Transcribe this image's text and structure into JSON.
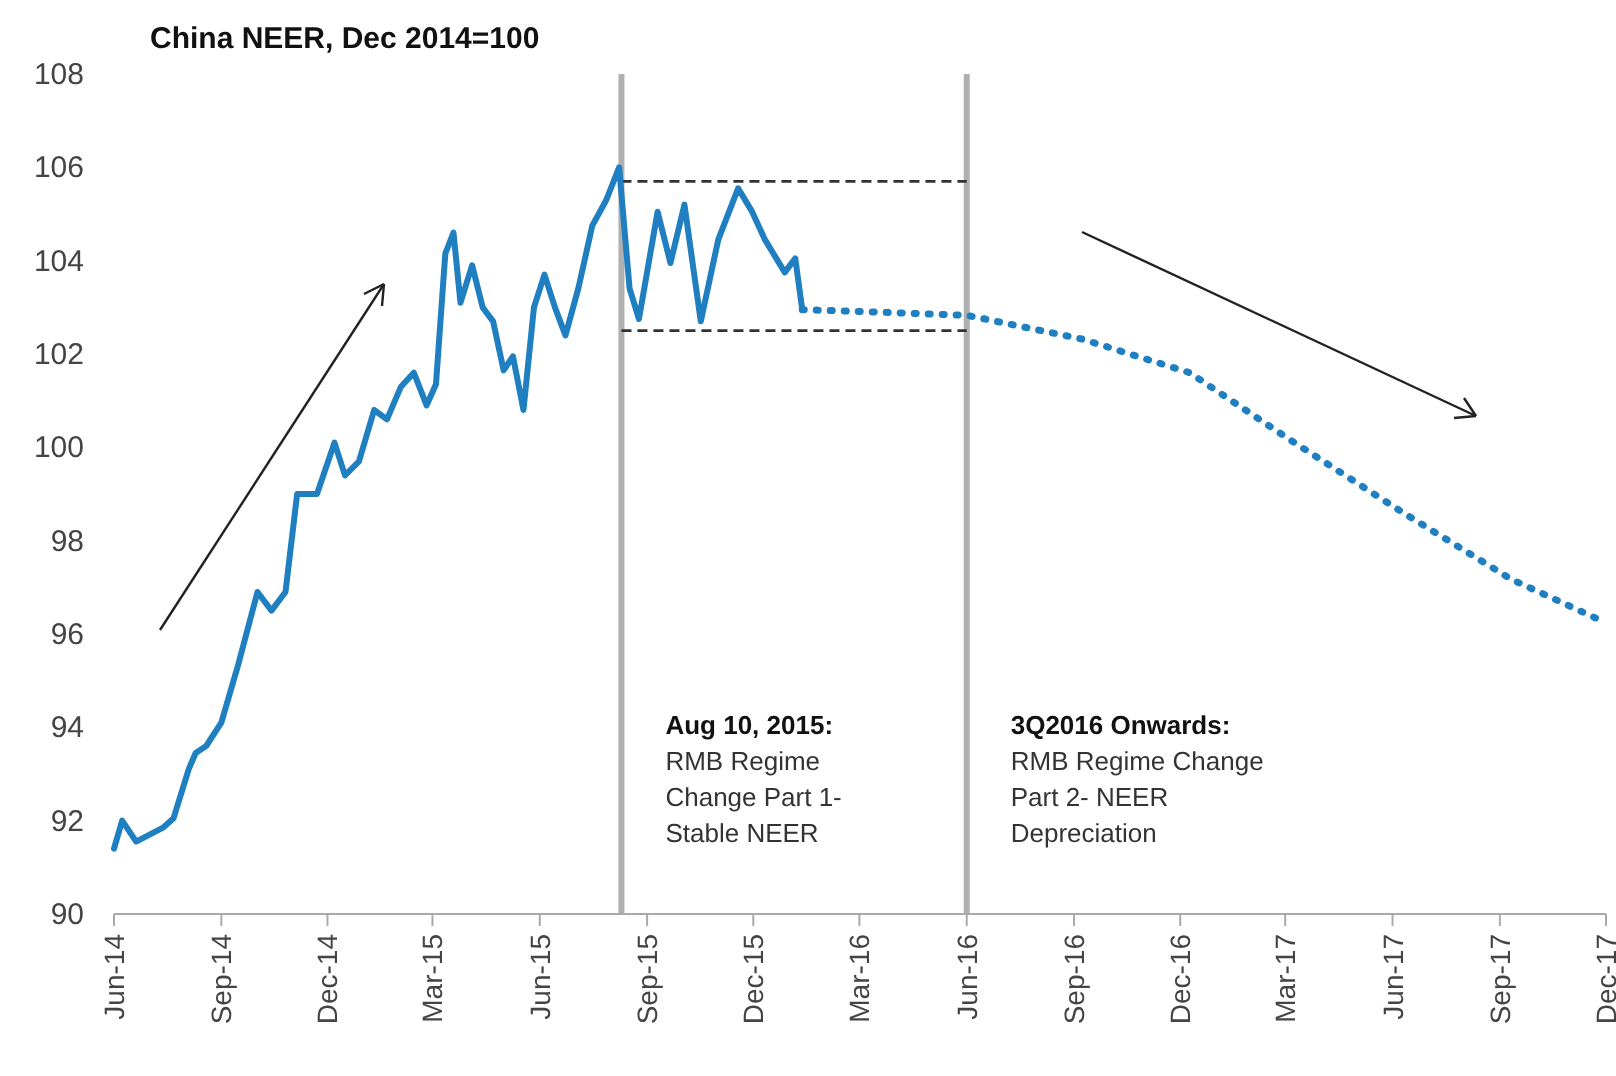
{
  "chart_data": {
    "type": "line",
    "title": "China NEER, Dec 2014=100",
    "xlim": [
      "2014-06-01",
      "2017-12-01"
    ],
    "xticks": [
      {
        "value": "2014-06-01",
        "label": "Jun-14"
      },
      {
        "value": "2014-09-01",
        "label": "Sep-14"
      },
      {
        "value": "2014-12-01",
        "label": "Dec-14"
      },
      {
        "value": "2015-03-01",
        "label": "Mar-15"
      },
      {
        "value": "2015-06-01",
        "label": "Jun-15"
      },
      {
        "value": "2015-09-01",
        "label": "Sep-15"
      },
      {
        "value": "2015-12-01",
        "label": "Dec-15"
      },
      {
        "value": "2016-03-01",
        "label": "Mar-16"
      },
      {
        "value": "2016-06-01",
        "label": "Jun-16"
      },
      {
        "value": "2016-09-01",
        "label": "Sep-16"
      },
      {
        "value": "2016-12-01",
        "label": "Dec-16"
      },
      {
        "value": "2017-03-01",
        "label": "Mar-17"
      },
      {
        "value": "2017-06-01",
        "label": "Jun-17"
      },
      {
        "value": "2017-09-01",
        "label": "Sep-17"
      },
      {
        "value": "2017-12-01",
        "label": "Dec-17"
      }
    ],
    "ylim": [
      90,
      108
    ],
    "yticks": [
      90,
      92,
      94,
      96,
      98,
      100,
      102,
      104,
      106,
      108
    ],
    "grid": false,
    "series": [
      {
        "color": "#1f7fc0",
        "line_style": "solid",
        "x": [
          "2014-06-01",
          "2014-06-08",
          "2014-06-20",
          "2014-07-13",
          "2014-07-22",
          "2014-08-04",
          "2014-08-10",
          "2014-08-19",
          "2014-09-01",
          "2014-09-15",
          "2014-10-02",
          "2014-10-14",
          "2014-10-26",
          "2014-11-05",
          "2014-11-22",
          "2014-12-07",
          "2014-12-16",
          "2014-12-28",
          "2015-01-10",
          "2015-01-21",
          "2015-02-02",
          "2015-02-13",
          "2015-02-24",
          "2015-03-04",
          "2015-03-12",
          "2015-03-19",
          "2015-03-25",
          "2015-04-04",
          "2015-04-13",
          "2015-04-22",
          "2015-05-01",
          "2015-05-09",
          "2015-05-18",
          "2015-05-27",
          "2015-06-05",
          "2015-06-14",
          "2015-06-23",
          "2015-07-04",
          "2015-07-16",
          "2015-07-28",
          "2015-08-08",
          "2015-08-17",
          "2015-08-25",
          "2015-09-10",
          "2015-09-21",
          "2015-10-03",
          "2015-10-17",
          "2015-11-01",
          "2015-11-18",
          "2015-11-30",
          "2015-12-11",
          "2015-12-28",
          "2016-01-06",
          "2016-01-12"
        ],
        "values": [
          91.4,
          92.0,
          91.55,
          91.85,
          92.05,
          93.1,
          93.45,
          93.6,
          94.1,
          95.3,
          96.9,
          96.5,
          96.9,
          99.0,
          99.0,
          100.1,
          99.4,
          99.7,
          100.8,
          100.6,
          101.3,
          101.6,
          100.9,
          101.35,
          104.15,
          104.6,
          103.1,
          103.9,
          103.0,
          102.7,
          101.65,
          101.95,
          100.8,
          103.0,
          103.7,
          103.0,
          102.4,
          103.4,
          104.75,
          105.3,
          106.0,
          103.4,
          102.75,
          105.05,
          103.95,
          105.2,
          102.7,
          104.45,
          105.55,
          105.05,
          104.45,
          103.75,
          104.05,
          102.95
        ]
      },
      {
        "color": "#1f7fc0",
        "line_style": "dotted",
        "x": [
          "2016-01-12",
          "2016-03-15",
          "2016-06-01",
          "2016-09-08",
          "2016-12-09",
          "2017-03-04",
          "2017-06-10",
          "2017-09-11",
          "2017-12-01"
        ],
        "values": [
          102.95,
          102.9,
          102.83,
          102.32,
          101.6,
          100.18,
          98.6,
          97.17,
          96.24
        ]
      }
    ],
    "ref_lines": [
      {
        "axis": "x",
        "value": "2015-08-10",
        "color": "#b0b0b0",
        "line_style": "solid"
      },
      {
        "axis": "x",
        "value": "2016-06-01",
        "color": "#b0b0b0",
        "line_style": "solid"
      },
      {
        "axis": "y",
        "value": 105.7,
        "color": "#333333",
        "line_style": "dashed"
      },
      {
        "axis": "y",
        "value": 102.5,
        "color": "#333333",
        "line_style": "dashed"
      }
    ],
    "annotations": [
      "Aug 10, 2015:\nRMB Regime\nChange Part 1-\nStable NEER",
      "3Q2016 Onwards:\nRMB Regime Change\nPart 2- NEER\nDepreciation"
    ]
  }
}
